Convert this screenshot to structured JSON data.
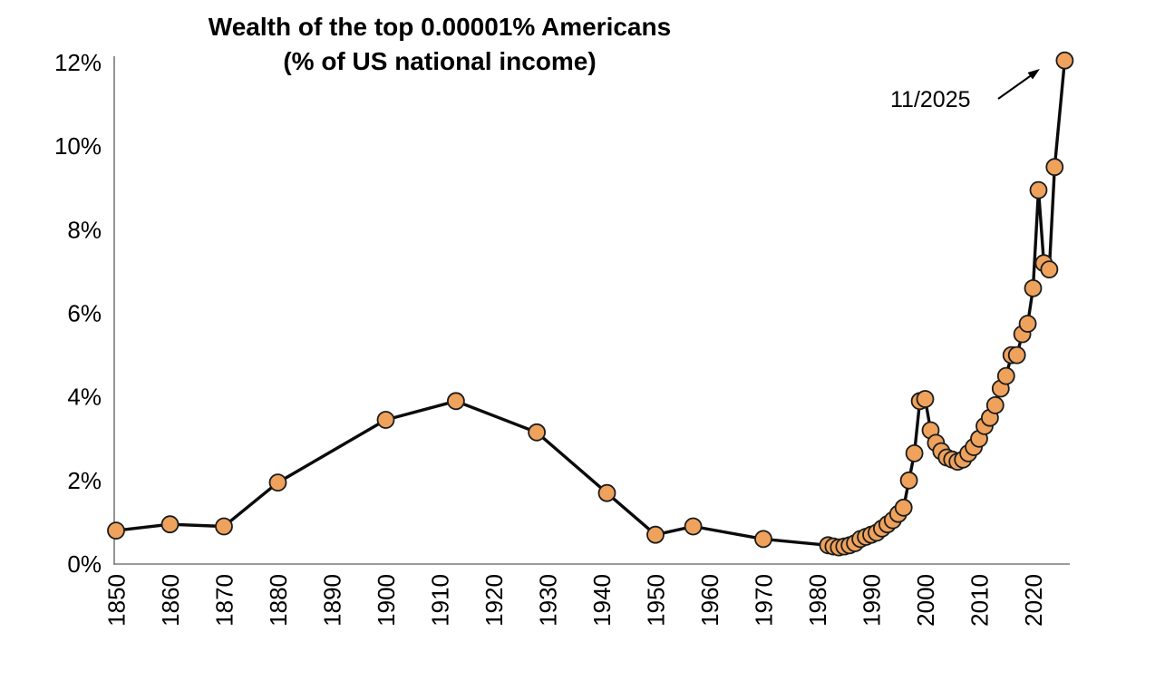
{
  "title": {
    "line1": "Wealth of the top 0.00001% Americans",
    "line2": "(% of US national income)"
  },
  "annotation": {
    "label": "11/2025"
  },
  "colors": {
    "marker_fill": "#EFA25C",
    "marker_stroke": "#1C1C1C",
    "line": "#0B0B0B",
    "axis": "#7A7A7A",
    "text": "#000000"
  },
  "chart_data": {
    "type": "line",
    "title": "Wealth of the top 0.00001% Americans (% of US national income)",
    "xlabel": "",
    "ylabel": "",
    "xlim": [
      1848,
      2027
    ],
    "ylim": [
      0,
      12
    ],
    "grid": false,
    "legend": false,
    "x_ticks": [
      1850,
      1860,
      1870,
      1880,
      1890,
      1900,
      1910,
      1920,
      1930,
      1940,
      1950,
      1960,
      1970,
      1980,
      1990,
      2000,
      2010,
      2020
    ],
    "y_ticks": [
      0,
      2,
      4,
      6,
      8,
      10,
      12
    ],
    "y_tick_labels": [
      "0%",
      "2%",
      "4%",
      "6%",
      "8%",
      "10%",
      "12%"
    ],
    "marker": {
      "radius": 9
    },
    "line_width": 3.4,
    "series": [
      {
        "name": "Wealth of the top 0.00001% Americans (% of US national income)",
        "points": [
          [
            1850,
            0.8
          ],
          [
            1860,
            0.95
          ],
          [
            1870,
            0.9
          ],
          [
            1880,
            1.95
          ],
          [
            1900,
            3.45
          ],
          [
            1913,
            3.9
          ],
          [
            1928,
            3.15
          ],
          [
            1941,
            1.7
          ],
          [
            1950,
            0.7
          ],
          [
            1957,
            0.9
          ],
          [
            1970,
            0.6
          ],
          [
            1982,
            0.45
          ],
          [
            1983,
            0.42
          ],
          [
            1984,
            0.4
          ],
          [
            1985,
            0.42
          ],
          [
            1986,
            0.45
          ],
          [
            1987,
            0.5
          ],
          [
            1988,
            0.6
          ],
          [
            1989,
            0.65
          ],
          [
            1990,
            0.7
          ],
          [
            1991,
            0.75
          ],
          [
            1992,
            0.85
          ],
          [
            1993,
            0.95
          ],
          [
            1994,
            1.05
          ],
          [
            1995,
            1.2
          ],
          [
            1996,
            1.35
          ],
          [
            1997,
            2.0
          ],
          [
            1998,
            2.65
          ],
          [
            1999,
            3.9
          ],
          [
            2000,
            3.95
          ],
          [
            2001,
            3.2
          ],
          [
            2002,
            2.9
          ],
          [
            2003,
            2.7
          ],
          [
            2004,
            2.55
          ],
          [
            2005,
            2.5
          ],
          [
            2006,
            2.45
          ],
          [
            2007,
            2.5
          ],
          [
            2008,
            2.65
          ],
          [
            2009,
            2.8
          ],
          [
            2010,
            3.0
          ],
          [
            2011,
            3.3
          ],
          [
            2012,
            3.5
          ],
          [
            2013,
            3.8
          ],
          [
            2014,
            4.2
          ],
          [
            2015,
            4.5
          ],
          [
            2016,
            5.0
          ],
          [
            2017,
            5.0
          ],
          [
            2018,
            5.5
          ],
          [
            2019,
            5.75
          ],
          [
            2020,
            6.6
          ],
          [
            2021,
            8.95
          ],
          [
            2022,
            7.2
          ],
          [
            2023,
            7.05
          ],
          [
            2024,
            9.5
          ],
          [
            2025.87,
            12.05
          ]
        ]
      }
    ],
    "annotation": {
      "text": "11/2025",
      "x": 2025.87,
      "y": 12.05
    }
  }
}
